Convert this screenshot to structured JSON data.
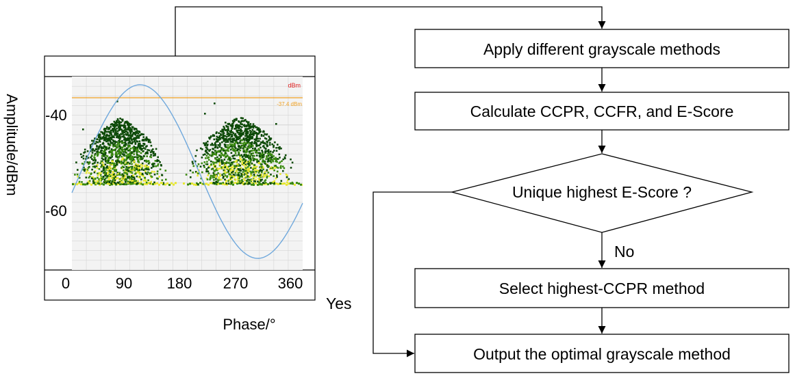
{
  "flow": {
    "step1": "Apply different grayscale methods",
    "step2": "Calculate CCPR, CCFR, and E-Score",
    "decision": "Unique highest E-Score ?",
    "branch_no": "No",
    "branch_yes": "Yes",
    "step3": "Select highest-CCPR method",
    "step4": "Output the optimal grayscale method"
  },
  "prpd": {
    "ylabel": "Amplitude/dBm",
    "xlabel": "Phase/°",
    "y_ticks": [
      "-40",
      "-60"
    ],
    "x_ticks": [
      "0",
      "90",
      "180",
      "270",
      "360"
    ],
    "unit_tag": "dBm",
    "threshold_tag": "-37.4 dBm",
    "threshold_value": -37.4,
    "y_range": [
      -78,
      -33
    ],
    "x_range": [
      0,
      360
    ],
    "colors": {
      "sine": "#6fa8dc",
      "threshold": "#f0a020",
      "unit_tag": "#e02020",
      "grid": "#d4d4d4",
      "dense": "#e8e830",
      "mid": "#3a8a10",
      "sparse": "#0d4a08"
    }
  }
}
